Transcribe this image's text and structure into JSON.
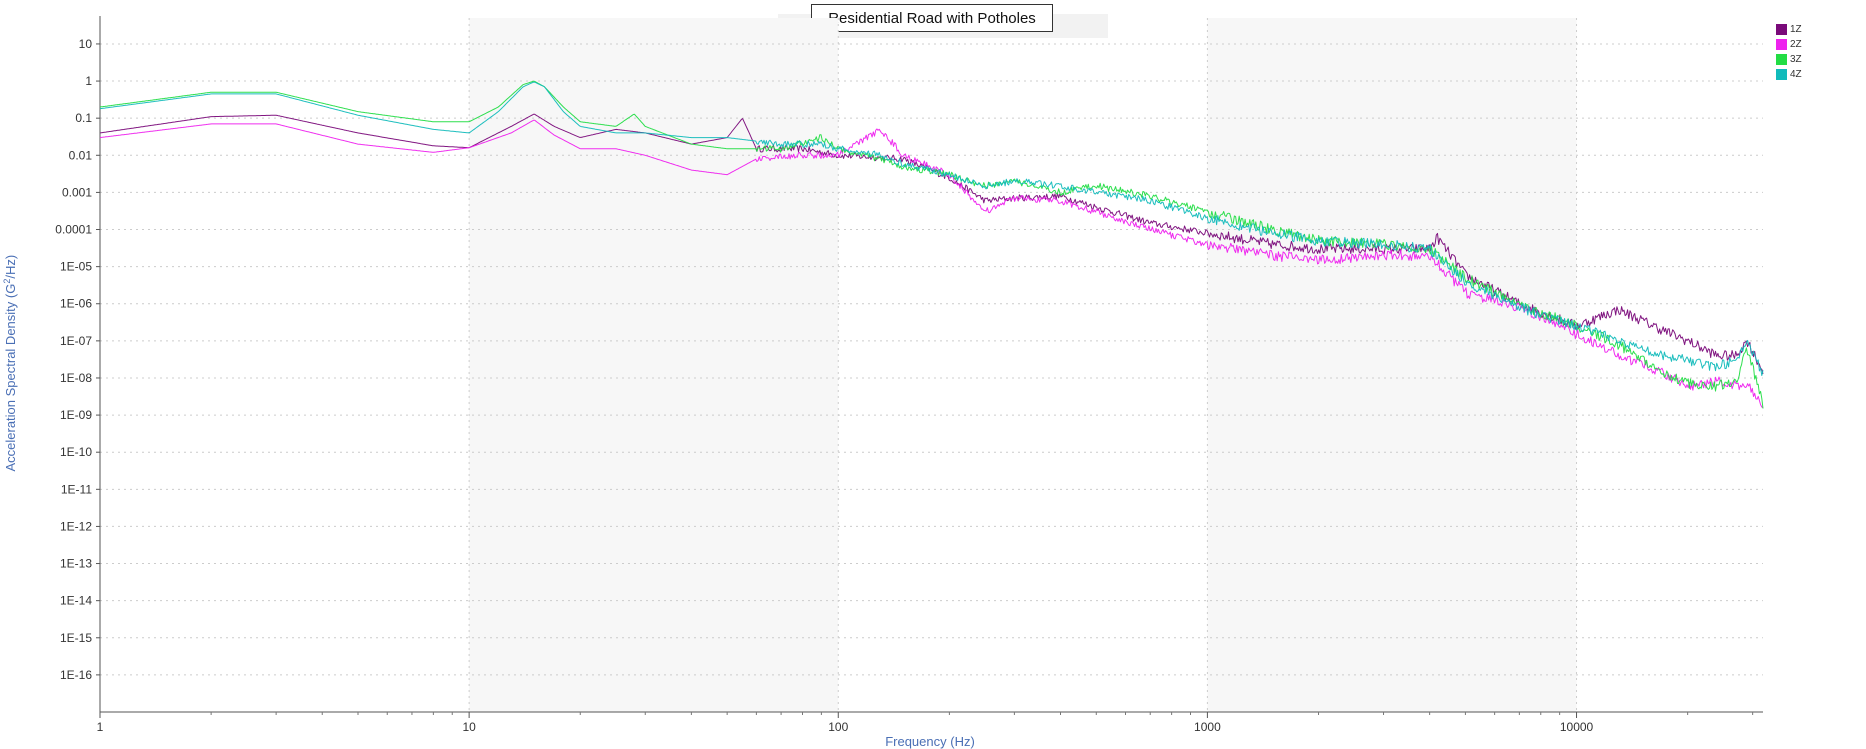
{
  "chart_data": {
    "type": "line",
    "title": "Residential Road with Potholes",
    "xlabel": "Frequency (Hz)",
    "ylabel_main": "Acceleration Spectral Density (G",
    "ylabel_sup": "2",
    "ylabel_end": "/Hz)",
    "x_scale": "log",
    "y_scale": "log",
    "xlim": [
      1,
      32000
    ],
    "ylim": [
      1e-17,
      50
    ],
    "grid": true,
    "legend_position": "top-right",
    "x_ticks": [
      {
        "value": 1,
        "label": "1"
      },
      {
        "value": 10,
        "label": "10"
      },
      {
        "value": 100,
        "label": "100"
      },
      {
        "value": 1000,
        "label": "1000"
      },
      {
        "value": 10000,
        "label": "10000"
      }
    ],
    "y_ticks": [
      {
        "value": 10,
        "label": "10"
      },
      {
        "value": 1,
        "label": "1"
      },
      {
        "value": 0.1,
        "label": "0.1"
      },
      {
        "value": 0.01,
        "label": "0.01"
      },
      {
        "value": 0.001,
        "label": "0.001"
      },
      {
        "value": 0.0001,
        "label": "0.0001"
      },
      {
        "value": 1e-05,
        "label": "1E-05"
      },
      {
        "value": 1e-06,
        "label": "1E-06"
      },
      {
        "value": 1e-07,
        "label": "1E-07"
      },
      {
        "value": 1e-08,
        "label": "1E-08"
      },
      {
        "value": 1e-09,
        "label": "1E-09"
      },
      {
        "value": 1e-10,
        "label": "1E-10"
      },
      {
        "value": 1e-11,
        "label": "1E-11"
      },
      {
        "value": 1e-12,
        "label": "1E-12"
      },
      {
        "value": 1e-13,
        "label": "1E-13"
      },
      {
        "value": 1e-14,
        "label": "1E-14"
      },
      {
        "value": 1e-15,
        "label": "1E-15"
      },
      {
        "value": 1e-16,
        "label": "1E-16"
      }
    ],
    "series": [
      {
        "name": "1Z",
        "color": "#7a0a7a",
        "x": [
          1,
          2,
          3,
          5,
          8,
          10,
          13,
          15,
          17,
          20,
          25,
          30,
          40,
          50,
          55,
          60,
          80,
          100,
          150,
          200,
          250,
          300,
          400,
          500,
          700,
          1000,
          1500,
          2000,
          3000,
          4000,
          4200,
          5000,
          7000,
          10000,
          13000,
          17000,
          20000,
          24000,
          27000,
          29000,
          32000
        ],
        "y": [
          0.04,
          0.11,
          0.12,
          0.04,
          0.018,
          0.016,
          0.06,
          0.13,
          0.06,
          0.03,
          0.05,
          0.04,
          0.02,
          0.03,
          0.1,
          0.015,
          0.015,
          0.01,
          0.008,
          0.0025,
          0.0006,
          0.0007,
          0.0008,
          0.0004,
          0.00015,
          8e-05,
          4e-05,
          3e-05,
          3e-05,
          3e-05,
          6e-05,
          6e-06,
          1e-06,
          2.5e-07,
          7e-07,
          2e-07,
          1e-07,
          4e-08,
          4e-08,
          1e-07,
          1.5e-08
        ]
      },
      {
        "name": "2Z",
        "color": "#ee22ee",
        "x": [
          1,
          2,
          3,
          5,
          8,
          10,
          13,
          15,
          17,
          20,
          25,
          30,
          40,
          50,
          60,
          80,
          100,
          130,
          150,
          200,
          250,
          300,
          400,
          500,
          700,
          1000,
          1500,
          2000,
          3000,
          4000,
          5000,
          7000,
          10000,
          13000,
          17000,
          20000,
          24000,
          27000,
          29000,
          32000
        ],
        "y": [
          0.03,
          0.07,
          0.07,
          0.02,
          0.012,
          0.016,
          0.04,
          0.09,
          0.035,
          0.015,
          0.015,
          0.01,
          0.004,
          0.003,
          0.008,
          0.01,
          0.01,
          0.05,
          0.01,
          0.003,
          0.0003,
          0.0007,
          0.0006,
          0.0003,
          0.0001,
          4e-05,
          2e-05,
          1.5e-05,
          2e-05,
          2e-05,
          2e-06,
          8e-07,
          1.5e-07,
          4e-08,
          1.5e-08,
          6e-09,
          8e-09,
          6e-09,
          7e-09,
          2e-09
        ]
      },
      {
        "name": "3Z",
        "color": "#22dd44",
        "x": [
          1,
          2,
          3,
          5,
          8,
          10,
          12,
          14,
          15,
          16,
          18,
          20,
          25,
          28,
          30,
          40,
          50,
          70,
          90,
          100,
          130,
          150,
          200,
          250,
          300,
          400,
          500,
          700,
          1000,
          1500,
          2000,
          3000,
          4000,
          5000,
          7000,
          10000,
          13000,
          17000,
          20000,
          24000,
          27000,
          29000,
          32000
        ],
        "y": [
          0.2,
          0.5,
          0.5,
          0.15,
          0.08,
          0.08,
          0.2,
          0.8,
          1.0,
          0.7,
          0.2,
          0.08,
          0.06,
          0.13,
          0.06,
          0.02,
          0.015,
          0.015,
          0.03,
          0.015,
          0.008,
          0.005,
          0.003,
          0.0015,
          0.002,
          0.001,
          0.0015,
          0.0008,
          0.0003,
          0.0001,
          5e-05,
          4e-05,
          3e-05,
          5e-06,
          1e-06,
          2.5e-07,
          8e-08,
          1.5e-08,
          7e-09,
          6e-09,
          8e-09,
          6e-08,
          2e-09
        ]
      },
      {
        "name": "4Z",
        "color": "#11bbbb",
        "x": [
          1,
          2,
          3,
          5,
          8,
          10,
          12,
          14,
          15,
          16,
          18,
          20,
          25,
          30,
          40,
          50,
          70,
          90,
          100,
          130,
          150,
          200,
          250,
          300,
          400,
          500,
          700,
          1000,
          1500,
          2000,
          3000,
          4000,
          5000,
          7000,
          10000,
          13000,
          17000,
          20000,
          24000,
          27000,
          29000,
          32000
        ],
        "y": [
          0.18,
          0.45,
          0.45,
          0.12,
          0.05,
          0.04,
          0.15,
          0.7,
          0.95,
          0.7,
          0.15,
          0.06,
          0.04,
          0.04,
          0.03,
          0.03,
          0.02,
          0.02,
          0.015,
          0.01,
          0.006,
          0.003,
          0.0015,
          0.002,
          0.0015,
          0.001,
          0.0006,
          0.0002,
          8e-05,
          5e-05,
          4e-05,
          3e-05,
          4e-06,
          8e-07,
          2.5e-07,
          1e-07,
          4e-08,
          3e-08,
          2e-08,
          3e-08,
          1e-07,
          1.2e-08
        ]
      }
    ]
  }
}
